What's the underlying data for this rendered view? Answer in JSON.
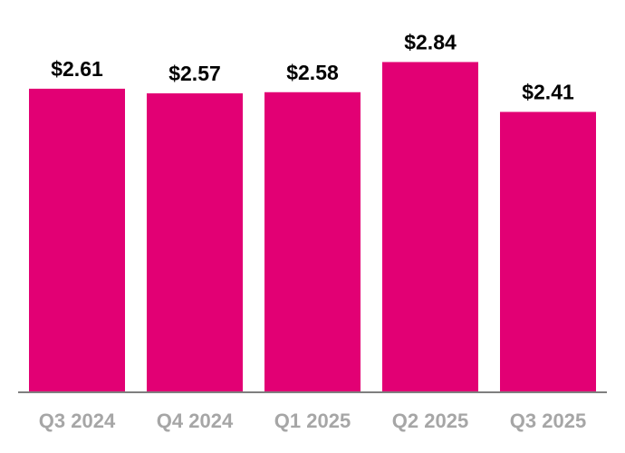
{
  "chart_data": {
    "type": "bar",
    "categories": [
      "Q3 2024",
      "Q4 2024",
      "Q1 2025",
      "Q2 2025",
      "Q3 2025"
    ],
    "values": [
      2.61,
      2.57,
      2.58,
      2.84,
      2.41
    ],
    "data_labels": [
      "$2.61",
      "$2.57",
      "$2.58",
      "$2.84",
      "$2.41"
    ],
    "title": "",
    "xlabel": "",
    "ylabel": "",
    "ylim": [
      0,
      3.3
    ],
    "grid": false,
    "legend": "none",
    "colors": {
      "bar": "#E20074",
      "axis": "#7f7f7f",
      "category_label": "#a6a6a6",
      "data_label": "#000000"
    }
  }
}
